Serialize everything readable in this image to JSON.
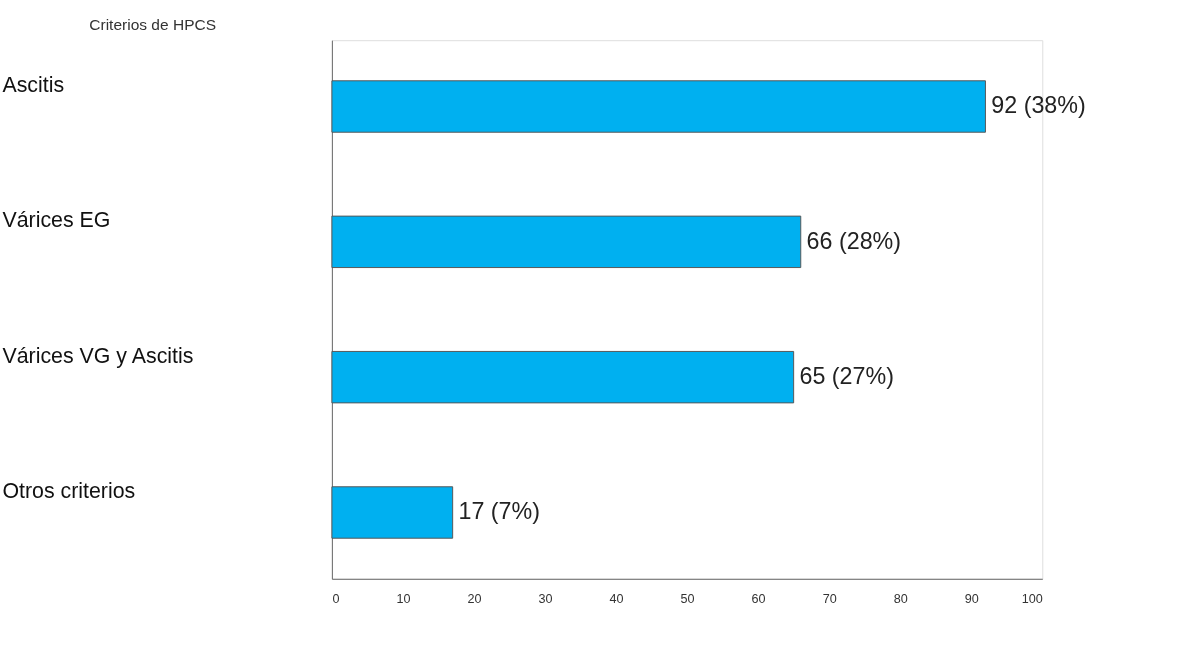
{
  "chart_data": {
    "type": "bar",
    "orientation": "horizontal",
    "title": "Criterios de HPCS",
    "categories": [
      "Ascitis",
      "Várices EG",
      "Várices VG y Ascitis",
      "Otros criterios"
    ],
    "values": [
      92,
      66,
      65,
      17
    ],
    "value_labels": [
      "92 (38%)",
      "66 (28%)",
      "65 (27%)",
      "17 (7%)"
    ],
    "color": "#00b0f0",
    "xlim": [
      0,
      100
    ],
    "xticks": [
      0,
      10,
      20,
      30,
      40,
      50,
      60,
      70,
      80,
      90,
      100
    ],
    "grid": false
  }
}
